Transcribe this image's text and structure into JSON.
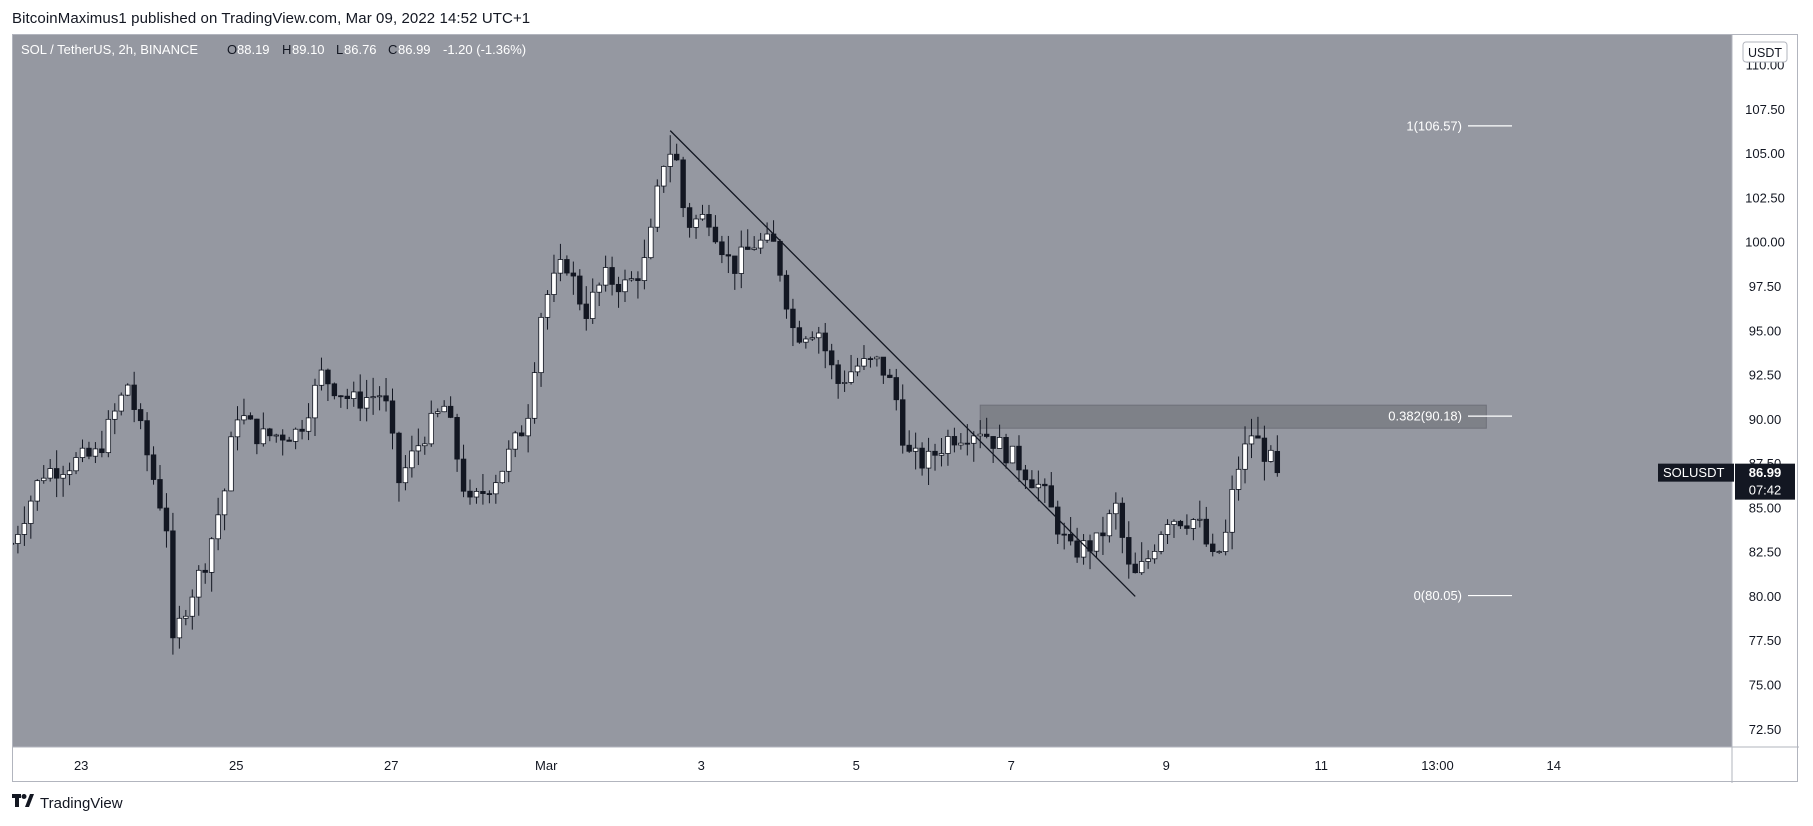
{
  "header": {
    "publisher_line": "BitcoinMaximus1 published on TradingView.com, Mar 09, 2022 14:52 UTC+1"
  },
  "footer": {
    "brand": "TradingView",
    "brand_icon": "tradingview-logo-icon"
  },
  "colors": {
    "plot_bg": "#9598a1",
    "up_candle_body": "#ffffff",
    "down_candle_body": "#131722",
    "wick": "#131722",
    "zone_fill": "#7a7c84",
    "trendline": "#131722",
    "price_label_bg": "#131722",
    "price_label_text": "#ffffff"
  },
  "chart_data": {
    "type": "candlestick",
    "legend": {
      "symbol": "SOL / TetherUS, 2h, BINANCE",
      "O_label": "O",
      "O": "88.19",
      "H_label": "H",
      "H": "89.10",
      "L_label": "L",
      "L": "86.76",
      "C_label": "C",
      "C": "86.99",
      "change": "-1.20 (-1.36%)"
    },
    "currency_label": "USDT",
    "y_ticks": [
      "72.50",
      "75.00",
      "77.50",
      "80.00",
      "82.50",
      "85.00",
      "87.50",
      "90.00",
      "92.50",
      "95.00",
      "97.50",
      "100.00",
      "102.50",
      "105.00",
      "107.50",
      "110.00"
    ],
    "ylim": [
      71.5,
      111.7
    ],
    "x_ticks": [
      {
        "label": "23",
        "day": 23
      },
      {
        "label": "25",
        "day": 25
      },
      {
        "label": "27",
        "day": 27
      },
      {
        "label": "Mar",
        "day": 29
      },
      {
        "label": "3",
        "day": 31
      },
      {
        "label": "5",
        "day": 33
      },
      {
        "label": "7",
        "day": 35
      },
      {
        "label": "9",
        "day": 37
      },
      {
        "label": "11",
        "day": 39
      },
      {
        "label": "13:00",
        "day": 40.5
      },
      {
        "label": "14",
        "day": 42
      }
    ],
    "x_range_days": [
      22.12,
      44.3
    ],
    "last_price": {
      "symbol": "SOLUSDT",
      "price": "86.99",
      "countdown": "07:42"
    },
    "fib_levels": [
      {
        "label": "1(106.57)",
        "value": 106.57
      },
      {
        "label": "0.382(90.18)",
        "value": 90.18
      },
      {
        "label": "0(80.05)",
        "value": 80.05
      }
    ],
    "resistance_zone": {
      "from_day": 34.6,
      "to_day": 41.13,
      "low": 89.5,
      "high": 90.8
    },
    "trendline": {
      "start": {
        "day": 30.6,
        "price": 106.3
      },
      "end": {
        "day": 36.6,
        "price": 80.0
      }
    },
    "anchors": [
      {
        "day": 22.1,
        "price": 83.0
      },
      {
        "day": 22.5,
        "price": 87.0
      },
      {
        "day": 23.2,
        "price": 88.0
      },
      {
        "day": 23.6,
        "price": 92.0
      },
      {
        "day": 24.1,
        "price": 84.0
      },
      {
        "day": 24.15,
        "price": 76.5
      },
      {
        "day": 24.3,
        "price": 79.0
      },
      {
        "day": 24.6,
        "price": 82.0
      },
      {
        "day": 24.85,
        "price": 86.0
      },
      {
        "day": 25.0,
        "price": 90.5
      },
      {
        "day": 25.3,
        "price": 89.0
      },
      {
        "day": 25.8,
        "price": 89.3
      },
      {
        "day": 26.1,
        "price": 92.5
      },
      {
        "day": 26.5,
        "price": 91.0
      },
      {
        "day": 26.9,
        "price": 91.5
      },
      {
        "day": 27.1,
        "price": 86.5
      },
      {
        "day": 27.4,
        "price": 89.0
      },
      {
        "day": 27.7,
        "price": 90.8
      },
      {
        "day": 28.0,
        "price": 85.0
      },
      {
        "day": 28.4,
        "price": 87.0
      },
      {
        "day": 28.75,
        "price": 90.0
      },
      {
        "day": 28.95,
        "price": 96.5
      },
      {
        "day": 29.25,
        "price": 99.0
      },
      {
        "day": 29.5,
        "price": 96.0
      },
      {
        "day": 29.75,
        "price": 98.0
      },
      {
        "day": 30.05,
        "price": 97.5
      },
      {
        "day": 30.3,
        "price": 99.0
      },
      {
        "day": 30.5,
        "price": 104.5
      },
      {
        "day": 30.65,
        "price": 105.5
      },
      {
        "day": 30.8,
        "price": 101.0
      },
      {
        "day": 31.1,
        "price": 101.5
      },
      {
        "day": 31.4,
        "price": 98.5
      },
      {
        "day": 31.7,
        "price": 100.0
      },
      {
        "day": 31.95,
        "price": 99.8
      },
      {
        "day": 32.2,
        "price": 94.8
      },
      {
        "day": 32.5,
        "price": 95.2
      },
      {
        "day": 32.75,
        "price": 92.0
      },
      {
        "day": 33.0,
        "price": 93.0
      },
      {
        "day": 33.3,
        "price": 93.2
      },
      {
        "day": 33.5,
        "price": 91.5
      },
      {
        "day": 33.65,
        "price": 88.0
      },
      {
        "day": 33.9,
        "price": 87.5
      },
      {
        "day": 34.2,
        "price": 89.0
      },
      {
        "day": 34.6,
        "price": 89.5
      },
      {
        "day": 34.85,
        "price": 88.5
      },
      {
        "day": 35.1,
        "price": 87.5
      },
      {
        "day": 35.4,
        "price": 86.0
      },
      {
        "day": 35.55,
        "price": 84.5
      },
      {
        "day": 35.75,
        "price": 82.5
      },
      {
        "day": 36.1,
        "price": 83.0
      },
      {
        "day": 36.35,
        "price": 85.0
      },
      {
        "day": 36.55,
        "price": 80.8
      },
      {
        "day": 36.75,
        "price": 82.0
      },
      {
        "day": 37.0,
        "price": 84.5
      },
      {
        "day": 37.4,
        "price": 84.3
      },
      {
        "day": 37.6,
        "price": 82.0
      },
      {
        "day": 37.75,
        "price": 83.0
      },
      {
        "day": 37.9,
        "price": 87.0
      },
      {
        "day": 38.1,
        "price": 89.2
      },
      {
        "day": 38.45,
        "price": 86.99
      }
    ]
  }
}
